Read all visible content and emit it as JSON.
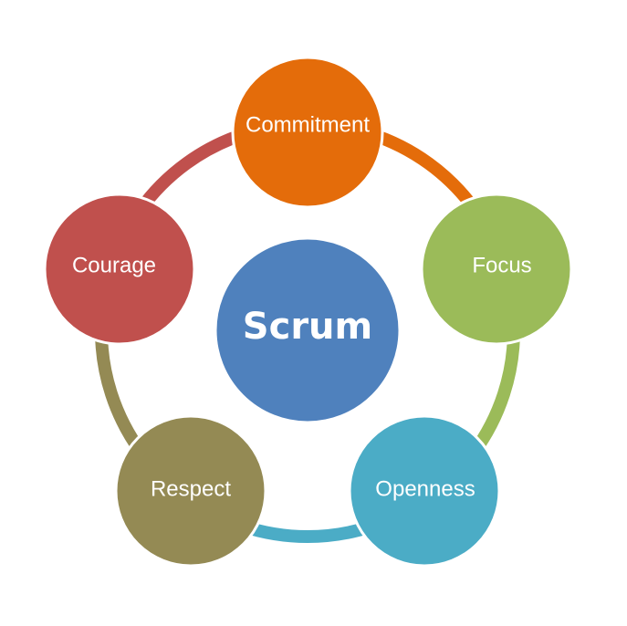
{
  "center": {
    "label": "Scrum",
    "color": "#4f81bd"
  },
  "values": [
    {
      "label": "Commitment",
      "color": "#e46c0a"
    },
    {
      "label": "Focus",
      "color": "#9bbb59"
    },
    {
      "label": "Openness",
      "color": "#4bacc6"
    },
    {
      "label": "Respect",
      "color": "#948a54"
    },
    {
      "label": "Courage",
      "color": "#c0504d"
    }
  ]
}
